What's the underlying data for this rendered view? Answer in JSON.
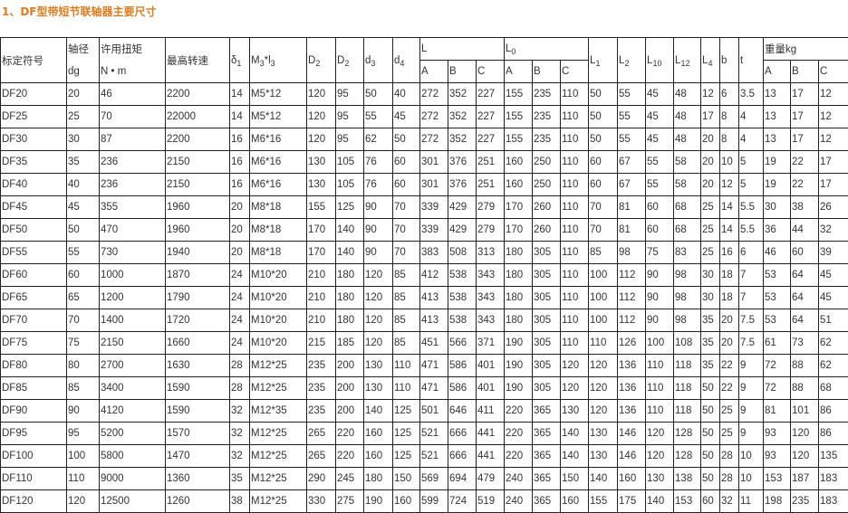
{
  "title": "1、DF型带短节联轴器主要尺寸",
  "colors": {
    "title": "#e27b1e",
    "border": "#222222",
    "text": "#333333"
  },
  "headers": {
    "model": "标定符号",
    "shaft": {
      "line1": "轴径",
      "line2": "dg"
    },
    "torque": {
      "line1": "许用扭矩",
      "line2": "N • m"
    },
    "speed": "最高转速",
    "delta1": {
      "base": "δ",
      "sub": "1"
    },
    "m3l3": {
      "base": "M",
      "sub": "3",
      "mid": "*l",
      "sub2": "3"
    },
    "D2a": {
      "base": "D",
      "sub": "2"
    },
    "D2b": {
      "base": "D",
      "sub": "2"
    },
    "d3": {
      "base": "d",
      "sub": "3"
    },
    "d4": {
      "base": "d",
      "sub": "4"
    },
    "L": {
      "base": "L"
    },
    "L0": {
      "base": "L",
      "sub": "0"
    },
    "L1": {
      "base": "L",
      "sub": "1"
    },
    "L2": {
      "base": "L",
      "sub": "2"
    },
    "L10": {
      "base": "L",
      "sub": "10"
    },
    "L12": {
      "base": "L",
      "sub": "12"
    },
    "L4": {
      "base": "L",
      "sub": "4"
    },
    "b": "b",
    "t": "t",
    "weight": "重量kg",
    "sub_abc": [
      "A",
      "B",
      "C"
    ]
  },
  "rows": [
    [
      "DF20",
      "20",
      "46",
      "2200",
      "14",
      "M5*12",
      "120",
      "95",
      "50",
      "40",
      "272",
      "352",
      "227",
      "155",
      "235",
      "110",
      "50",
      "55",
      "45",
      "48",
      "12",
      "6",
      "3.5",
      "13",
      "17",
      "12"
    ],
    [
      "DF25",
      "25",
      "70",
      "22000",
      "14",
      "M5*12",
      "120",
      "95",
      "55",
      "45",
      "272",
      "352",
      "227",
      "155",
      "235",
      "110",
      "50",
      "55",
      "45",
      "48",
      "17",
      "8",
      "4",
      "13",
      "17",
      "12"
    ],
    [
      "DF30",
      "30",
      "87",
      "2200",
      "16",
      "M6*16",
      "120",
      "95",
      "62",
      "50",
      "272",
      "352",
      "227",
      "155",
      "235",
      "110",
      "50",
      "55",
      "45",
      "48",
      "20",
      "8",
      "4",
      "13",
      "17",
      "12"
    ],
    [
      "DF35",
      "35",
      "236",
      "2150",
      "16",
      "M6*16",
      "130",
      "105",
      "76",
      "60",
      "301",
      "376",
      "251",
      "160",
      "250",
      "110",
      "60",
      "67",
      "55",
      "58",
      "20",
      "10",
      "5",
      "19",
      "22",
      "17"
    ],
    [
      "DF40",
      "40",
      "236",
      "2150",
      "16",
      "M6*16",
      "130",
      "105",
      "76",
      "60",
      "301",
      "376",
      "251",
      "160",
      "250",
      "110",
      "60",
      "67",
      "55",
      "58",
      "20",
      "12",
      "5",
      "19",
      "22",
      "17"
    ],
    [
      "DF45",
      "45",
      "355",
      "1960",
      "20",
      "M8*18",
      "155",
      "125",
      "90",
      "70",
      "339",
      "429",
      "279",
      "170",
      "260",
      "110",
      "70",
      "81",
      "60",
      "68",
      "25",
      "14",
      "5.5",
      "30",
      "38",
      "26"
    ],
    [
      "DF50",
      "50",
      "470",
      "1960",
      "20",
      "M8*18",
      "170",
      "140",
      "90",
      "70",
      "339",
      "429",
      "279",
      "170",
      "260",
      "110",
      "70",
      "81",
      "60",
      "68",
      "25",
      "14",
      "5.5",
      "36",
      "44",
      "32"
    ],
    [
      "DF55",
      "55",
      "730",
      "1940",
      "20",
      "M8*18",
      "170",
      "140",
      "90",
      "70",
      "383",
      "508",
      "313",
      "180",
      "305",
      "110",
      "85",
      "98",
      "75",
      "83",
      "25",
      "16",
      "6",
      "46",
      "60",
      "39"
    ],
    [
      "DF60",
      "60",
      "1000",
      "1870",
      "24",
      "M10*20",
      "210",
      "180",
      "120",
      "85",
      "412",
      "538",
      "343",
      "180",
      "305",
      "110",
      "100",
      "112",
      "90",
      "98",
      "30",
      "18",
      "7",
      "53",
      "64",
      "45"
    ],
    [
      "DF65",
      "65",
      "1200",
      "1790",
      "24",
      "M10*20",
      "210",
      "180",
      "120",
      "85",
      "413",
      "538",
      "343",
      "180",
      "305",
      "110",
      "100",
      "112",
      "90",
      "98",
      "30",
      "18",
      "7",
      "53",
      "64",
      "45"
    ],
    [
      "DF70",
      "70",
      "1400",
      "1720",
      "24",
      "M10*20",
      "210",
      "180",
      "120",
      "85",
      "413",
      "538",
      "343",
      "180",
      "305",
      "110",
      "100",
      "112",
      "90",
      "98",
      "35",
      "20",
      "7.5",
      "53",
      "64",
      "51"
    ],
    [
      "DF75",
      "75",
      "2150",
      "1660",
      "24",
      "M10*20",
      "215",
      "185",
      "120",
      "85",
      "451",
      "566",
      "371",
      "190",
      "305",
      "110",
      "110",
      "126",
      "100",
      "108",
      "35",
      "20",
      "7.5",
      "61",
      "73",
      "62"
    ],
    [
      "DF80",
      "80",
      "2700",
      "1630",
      "28",
      "M12*25",
      "235",
      "200",
      "130",
      "110",
      "471",
      "586",
      "401",
      "190",
      "305",
      "120",
      "120",
      "136",
      "110",
      "118",
      "35",
      "22",
      "9",
      "72",
      "88",
      "62"
    ],
    [
      "DF85",
      "85",
      "3400",
      "1590",
      "28",
      "M12*25",
      "235",
      "200",
      "130",
      "110",
      "471",
      "586",
      "401",
      "190",
      "305",
      "120",
      "120",
      "136",
      "110",
      "118",
      "50",
      "22",
      "9",
      "72",
      "88",
      "68"
    ],
    [
      "DF90",
      "90",
      "4120",
      "1590",
      "32",
      "M12*35",
      "235",
      "200",
      "140",
      "125",
      "501",
      "646",
      "411",
      "220",
      "365",
      "130",
      "120",
      "136",
      "110",
      "118",
      "50",
      "25",
      "9",
      "81",
      "101",
      "86"
    ],
    [
      "DF95",
      "95",
      "5200",
      "1570",
      "32",
      "M12*25",
      "265",
      "220",
      "160",
      "125",
      "521",
      "666",
      "441",
      "220",
      "365",
      "140",
      "130",
      "146",
      "120",
      "128",
      "50",
      "25",
      "9",
      "93",
      "120",
      "86"
    ],
    [
      "DF100",
      "100",
      "5800",
      "1470",
      "32",
      "M12*25",
      "265",
      "220",
      "160",
      "125",
      "521",
      "666",
      "441",
      "220",
      "365",
      "140",
      "130",
      "146",
      "120",
      "128",
      "50",
      "28",
      "10",
      "93",
      "120",
      "135"
    ],
    [
      "DF110",
      "110",
      "9000",
      "1360",
      "35",
      "M12*25",
      "290",
      "245",
      "180",
      "150",
      "569",
      "694",
      "479",
      "240",
      "365",
      "150",
      "140",
      "160",
      "130",
      "138",
      "50",
      "28",
      "10",
      "153",
      "187",
      "183"
    ],
    [
      "DF120",
      "120",
      "12500",
      "1260",
      "38",
      "M12*25",
      "330",
      "275",
      "190",
      "160",
      "599",
      "724",
      "519",
      "240",
      "365",
      "160",
      "155",
      "175",
      "140",
      "153",
      "60",
      "32",
      "11",
      "198",
      "235",
      "183"
    ]
  ]
}
